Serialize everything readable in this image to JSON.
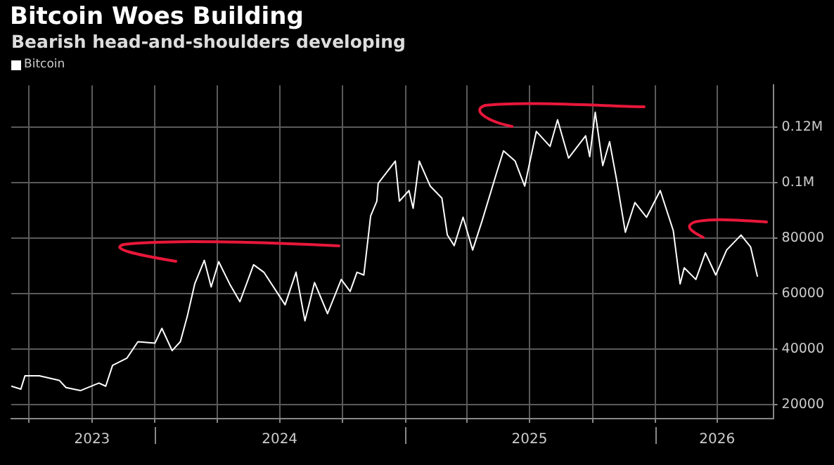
{
  "chart_data": {
    "type": "line",
    "title": "Bitcoin Woes Building",
    "subtitle": "Bearish head-and-shoulders developing",
    "x": [
      "2023-06-05",
      "2023-06-19",
      "2023-06-25",
      "2023-07-16",
      "2023-08-14",
      "2023-08-24",
      "2023-09-14",
      "2023-10-11",
      "2023-10-21",
      "2023-10-31",
      "2023-11-21",
      "2023-12-07",
      "2024-01-01",
      "2024-01-11",
      "2024-01-26",
      "2024-02-07",
      "2024-02-17",
      "2024-02-28",
      "2024-03-13",
      "2024-03-23",
      "2024-04-03",
      "2024-04-19",
      "2024-05-04",
      "2024-05-24",
      "2024-06-08",
      "2024-07-09",
      "2024-07-25",
      "2024-08-07",
      "2024-08-21",
      "2024-09-09",
      "2024-09-29",
      "2024-10-12",
      "2024-10-22",
      "2024-11-01",
      "2024-11-11",
      "2024-11-20",
      "2024-11-22",
      "2024-12-17",
      "2024-12-23",
      "2025-01-06",
      "2025-01-12",
      "2025-01-21",
      "2025-02-06",
      "2025-02-23",
      "2025-03-03",
      "2025-03-13",
      "2025-03-26",
      "2025-04-09",
      "2025-04-23",
      "2025-05-14",
      "2025-05-24",
      "2025-06-10",
      "2025-06-24",
      "2025-07-11",
      "2025-07-31",
      "2025-08-11",
      "2025-08-27",
      "2025-09-21",
      "2025-09-27",
      "2025-10-05",
      "2025-10-16",
      "2025-10-26",
      "2025-11-05",
      "2025-11-18",
      "2025-12-02",
      "2025-12-19",
      "2026-01-08",
      "2026-01-27",
      "2026-02-06",
      "2026-02-12",
      "2026-03-01",
      "2026-03-15",
      "2026-03-30",
      "2026-04-15",
      "2026-05-06",
      "2026-05-20",
      "2026-05-30"
    ],
    "series": [
      {
        "name": "Bitcoin",
        "color": "#ffffff",
        "values": [
          26700,
          25600,
          30400,
          30400,
          28800,
          26200,
          25100,
          27800,
          26700,
          34200,
          36800,
          42700,
          42200,
          47500,
          39500,
          42700,
          51700,
          63500,
          72000,
          62400,
          71500,
          63500,
          57100,
          70400,
          67700,
          56000,
          67700,
          50200,
          64000,
          52800,
          65100,
          60800,
          67700,
          66700,
          88000,
          93300,
          99700,
          107700,
          93300,
          97100,
          90700,
          107700,
          98700,
          94400,
          81100,
          77300,
          87500,
          75700,
          86400,
          103500,
          111400,
          107700,
          98700,
          118400,
          113000,
          122600,
          108800,
          116800,
          109300,
          125300,
          106100,
          114700,
          101300,
          82100,
          92800,
          87500,
          97100,
          82700,
          63500,
          69300,
          65100,
          74700,
          66700,
          75700,
          81100,
          76800,
          66100
        ]
      }
    ],
    "xlim": [
      "2023-06-05",
      "2026-06-22"
    ],
    "xticks": [
      {
        "value": "2023-07-01",
        "label": null
      },
      {
        "value": "2023-10-01",
        "label": "2023"
      },
      {
        "value": "2024-01-01",
        "label": null
      },
      {
        "value": "2024-04-01",
        "label": null
      },
      {
        "value": "2024-07-01",
        "label": "2024"
      },
      {
        "value": "2024-10-01",
        "label": null
      },
      {
        "value": "2025-01-01",
        "label": null
      },
      {
        "value": "2025-04-01",
        "label": null
      },
      {
        "value": "2025-07-01",
        "label": "2025"
      },
      {
        "value": "2025-10-01",
        "label": null
      },
      {
        "value": "2026-01-01",
        "label": null
      },
      {
        "value": "2026-04-01",
        "label": "2026"
      }
    ],
    "ylim": [
      15000,
      135000
    ],
    "yticks": [
      20000,
      40000,
      60000,
      80000,
      {
        "value": 100000,
        "label": "0.1M"
      },
      {
        "value": 120000,
        "label": "0.12M"
      }
    ],
    "grid": true,
    "legend": "top left",
    "marker": "none",
    "line_style": "solid"
  }
}
